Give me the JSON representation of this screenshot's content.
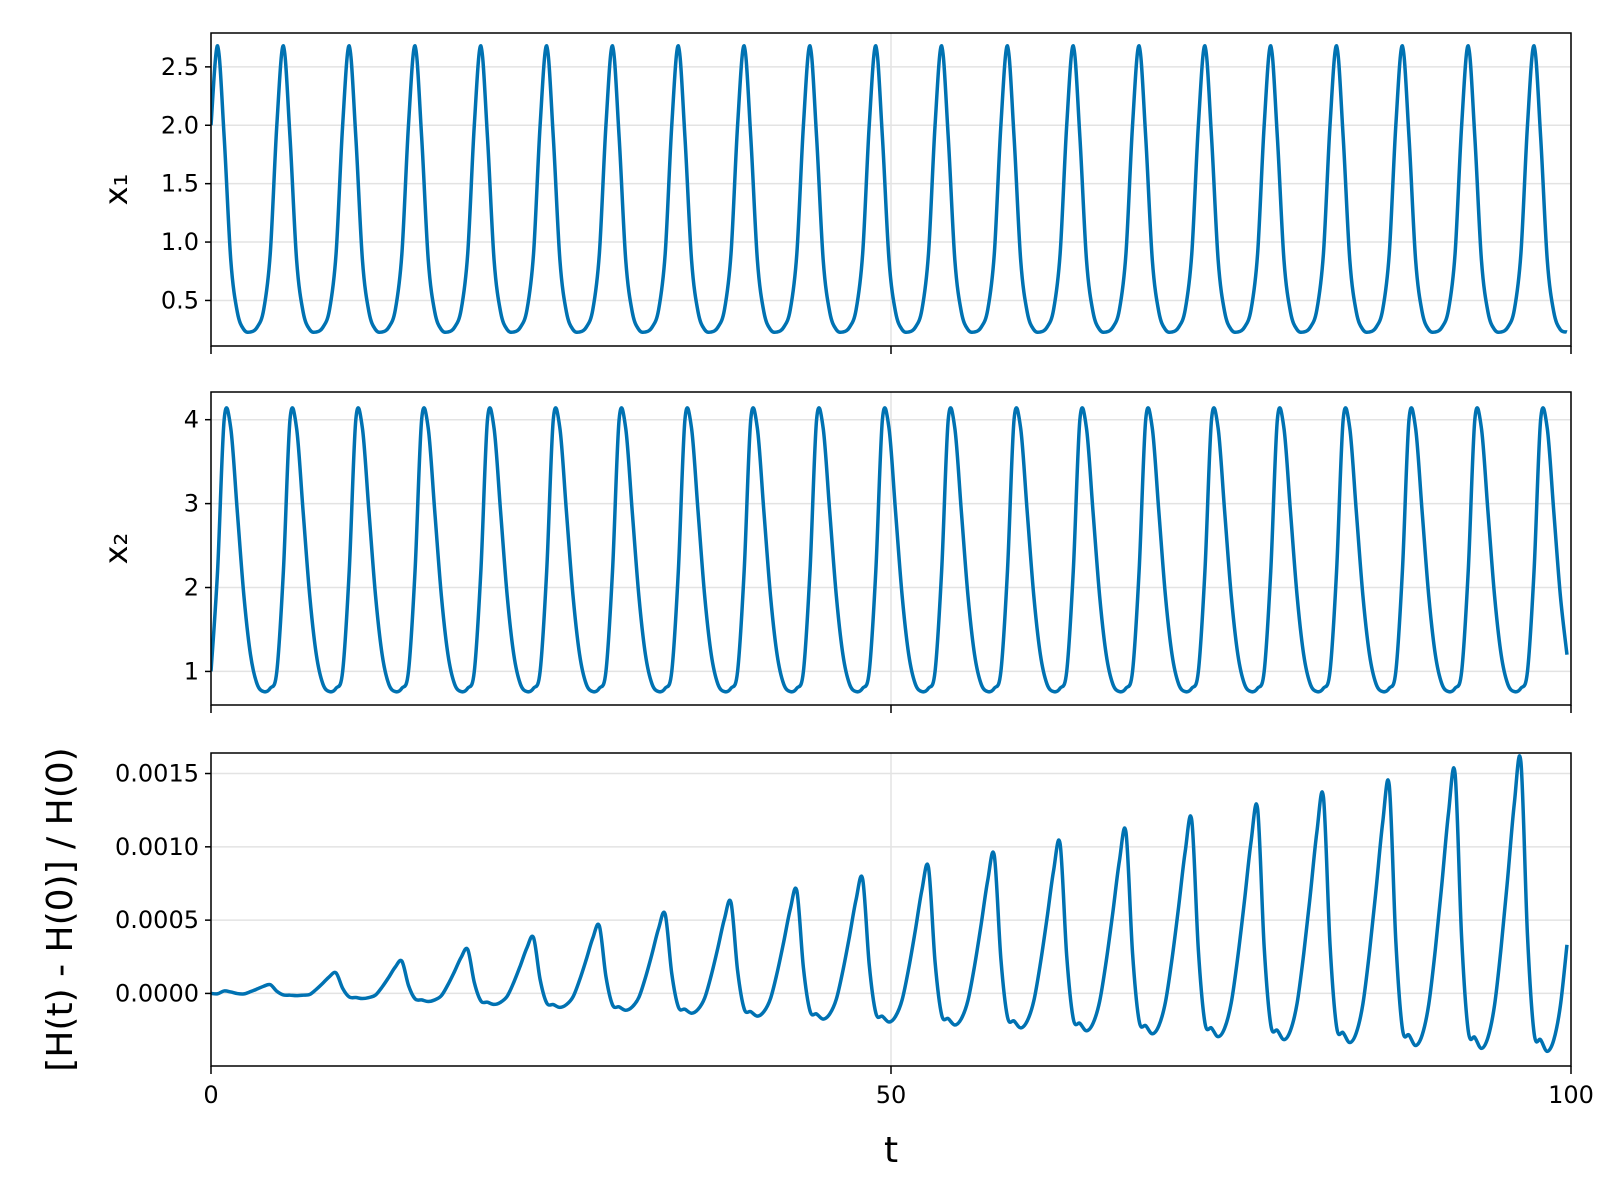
{
  "chart_data": {
    "type": "line",
    "xlabel": "t",
    "color": "#0072b2",
    "grid": true,
    "xlim": [
      0,
      100
    ],
    "xticks": [
      0,
      50,
      100
    ],
    "x": [
      0,
      0.484,
      0.968,
      1.452,
      1.936,
      2.42,
      2.904,
      3.388,
      3.872,
      4.356,
      4.84,
      5.324,
      5.808,
      6.292,
      6.776,
      7.26,
      7.744,
      8.228,
      8.712,
      9.196,
      9.68,
      10.164,
      10.648,
      11.132,
      11.616,
      12.1,
      12.584,
      13.068,
      13.552,
      14.036,
      14.52,
      15.004,
      15.488,
      15.972,
      16.456,
      16.94,
      17.424,
      17.908,
      18.392,
      18.876,
      19.36,
      19.844,
      20.328,
      20.812,
      21.296,
      21.78,
      22.264,
      22.748,
      23.232,
      23.716,
      24.2,
      24.684,
      25.168,
      25.652,
      26.136,
      26.62,
      27.104,
      27.588,
      28.072,
      28.556,
      29.04,
      29.524,
      30.008,
      30.492,
      30.976,
      31.46,
      31.944,
      32.428,
      32.912,
      33.396,
      33.88,
      34.364,
      34.848,
      35.332,
      35.816,
      36.3,
      36.784,
      37.268,
      37.752,
      38.236,
      38.72,
      39.204,
      39.688,
      40.172,
      40.656,
      41.14,
      41.624,
      42.108,
      42.592,
      43.076,
      43.56,
      44.044,
      44.528,
      45.012,
      45.496,
      45.98,
      46.464,
      46.948,
      47.432,
      47.916,
      48.4,
      48.884,
      49.368,
      49.852,
      50.336,
      50.82,
      51.304,
      51.788,
      52.272,
      52.756,
      53.24,
      53.724,
      54.208,
      54.692,
      55.176,
      55.66,
      56.144,
      56.628,
      57.112,
      57.596,
      58.08,
      58.564,
      59.048,
      59.532,
      60.016,
      60.5,
      60.984,
      61.468,
      61.952,
      62.436,
      62.92,
      63.404,
      63.888,
      64.372,
      64.856,
      65.34,
      65.824,
      66.308,
      66.792,
      67.276,
      67.76,
      68.244,
      68.728,
      69.212,
      69.696,
      70.18,
      70.664,
      71.148,
      71.632,
      72.116,
      72.6,
      73.084,
      73.568,
      74.052,
      74.536,
      75.02,
      75.504,
      75.988,
      76.472,
      76.956,
      77.44,
      77.924,
      78.408,
      78.892,
      79.376,
      79.86,
      80.344,
      80.828,
      81.312,
      81.796,
      82.28,
      82.764,
      83.248,
      83.732,
      84.216,
      84.7,
      85.184,
      85.668,
      86.152,
      86.636,
      87.12,
      87.604,
      88.088,
      88.572,
      89.056,
      89.54,
      90.024,
      90.508,
      90.992,
      91.476,
      91.96,
      92.444,
      92.928,
      93.412,
      93.896,
      94.38,
      94.864,
      95.348,
      95.832,
      96.316,
      96.8,
      97.284,
      97.768,
      98.252,
      98.736,
      99.22,
      99.704
    ],
    "panels": [
      {
        "ylabel": "x₁",
        "ylim": [
          0.11,
          2.79
        ],
        "yticks": [
          0.5,
          {
            "value": 1,
            "label": "1.0"
          },
          1.5,
          {
            "value": 2,
            "label": "2.0"
          },
          2.5
        ],
        "values": [
          2,
          2.68,
          1.9,
          0.85,
          0.4,
          0.25,
          0.23,
          0.27,
          0.42,
          0.9,
          2,
          2.68,
          1.9,
          0.85,
          0.4,
          0.25,
          0.23,
          0.27,
          0.42,
          0.9,
          2,
          2.68,
          1.9,
          0.85,
          0.4,
          0.25,
          0.23,
          0.27,
          0.42,
          0.9,
          2,
          2.68,
          1.9,
          0.85,
          0.4,
          0.25,
          0.23,
          0.27,
          0.42,
          0.9,
          2,
          2.68,
          1.9,
          0.85,
          0.4,
          0.25,
          0.23,
          0.27,
          0.42,
          0.9,
          2,
          2.68,
          1.9,
          0.85,
          0.4,
          0.25,
          0.23,
          0.27,
          0.42,
          0.9,
          2,
          2.68,
          1.9,
          0.85,
          0.4,
          0.25,
          0.23,
          0.27,
          0.42,
          0.9,
          2,
          2.68,
          1.9,
          0.85,
          0.4,
          0.25,
          0.23,
          0.27,
          0.42,
          0.9,
          2,
          2.68,
          1.9,
          0.85,
          0.4,
          0.25,
          0.23,
          0.27,
          0.42,
          0.9,
          2,
          2.68,
          1.9,
          0.85,
          0.4,
          0.25,
          0.23,
          0.27,
          0.42,
          0.9,
          2,
          2.68,
          1.9,
          0.85,
          0.4,
          0.25,
          0.23,
          0.27,
          0.42,
          0.9,
          2,
          2.68,
          1.9,
          0.85,
          0.4,
          0.25,
          0.23,
          0.27,
          0.42,
          0.9,
          2,
          2.68,
          1.9,
          0.85,
          0.4,
          0.25,
          0.23,
          0.27,
          0.42,
          0.9,
          2,
          2.68,
          1.9,
          0.85,
          0.4,
          0.25,
          0.23,
          0.27,
          0.42,
          0.9,
          2,
          2.68,
          1.9,
          0.85,
          0.4,
          0.25,
          0.23,
          0.27,
          0.42,
          0.9,
          2,
          2.68,
          1.9,
          0.85,
          0.4,
          0.25,
          0.23,
          0.27,
          0.42,
          0.9,
          2,
          2.68,
          1.9,
          0.85,
          0.4,
          0.25,
          0.23,
          0.27,
          0.42,
          0.9,
          2,
          2.68,
          1.9,
          0.85,
          0.4,
          0.25,
          0.23,
          0.27,
          0.42,
          0.9,
          2,
          2.68,
          1.9,
          0.85,
          0.4,
          0.25,
          0.23,
          0.27,
          0.42,
          0.9,
          2,
          2.68,
          1.9,
          0.85,
          0.4,
          0.25,
          0.23,
          0.27,
          0.42,
          0.9,
          2,
          2.68,
          1.9,
          0.85,
          0.4,
          0.25,
          0.23
        ]
      },
      {
        "ylabel": "x₂",
        "ylim": [
          0.6,
          4.33
        ],
        "yticks": [
          1,
          2,
          3,
          4
        ],
        "values": [
          1,
          2.2,
          4,
          3.9,
          2.9,
          1.9,
          1.2,
          0.85,
          0.76,
          0.8,
          1,
          2.2,
          4,
          3.9,
          2.9,
          1.9,
          1.2,
          0.85,
          0.76,
          0.8,
          1,
          2.2,
          4,
          3.9,
          2.9,
          1.9,
          1.2,
          0.85,
          0.76,
          0.8,
          1,
          2.2,
          4,
          3.9,
          2.9,
          1.9,
          1.2,
          0.85,
          0.76,
          0.8,
          1,
          2.2,
          4,
          3.9,
          2.9,
          1.9,
          1.2,
          0.85,
          0.76,
          0.8,
          1,
          2.2,
          4,
          3.9,
          2.9,
          1.9,
          1.2,
          0.85,
          0.76,
          0.8,
          1,
          2.2,
          4,
          3.9,
          2.9,
          1.9,
          1.2,
          0.85,
          0.76,
          0.8,
          1,
          2.2,
          4,
          3.9,
          2.9,
          1.9,
          1.2,
          0.85,
          0.76,
          0.8,
          1,
          2.2,
          4,
          3.9,
          2.9,
          1.9,
          1.2,
          0.85,
          0.76,
          0.8,
          1,
          2.2,
          4,
          3.9,
          2.9,
          1.9,
          1.2,
          0.85,
          0.76,
          0.8,
          1,
          2.2,
          4,
          3.9,
          2.9,
          1.9,
          1.2,
          0.85,
          0.76,
          0.8,
          1,
          2.2,
          4,
          3.9,
          2.9,
          1.9,
          1.2,
          0.85,
          0.76,
          0.8,
          1,
          2.2,
          4,
          3.9,
          2.9,
          1.9,
          1.2,
          0.85,
          0.76,
          0.8,
          1,
          2.2,
          4,
          3.9,
          2.9,
          1.9,
          1.2,
          0.85,
          0.76,
          0.8,
          1,
          2.2,
          4,
          3.9,
          2.9,
          1.9,
          1.2,
          0.85,
          0.76,
          0.8,
          1,
          2.2,
          4,
          3.9,
          2.9,
          1.9,
          1.2,
          0.85,
          0.76,
          0.8,
          1,
          2.2,
          4,
          3.9,
          2.9,
          1.9,
          1.2,
          0.85,
          0.76,
          0.8,
          1,
          2.2,
          4,
          3.9,
          2.9,
          1.9,
          1.2,
          0.85,
          0.76,
          0.8,
          1,
          2.2,
          4,
          3.9,
          2.9,
          1.9,
          1.2,
          0.85,
          0.76,
          0.8,
          1,
          2.2,
          4,
          3.9,
          2.9,
          1.9,
          1.2,
          0.85,
          0.76,
          0.8,
          1,
          2.2,
          4,
          3.9,
          2.9,
          1.9,
          1.2
        ]
      },
      {
        "ylabel": "[H(t) - H(0)] / H(0)",
        "ylim": [
          -0.000495,
          0.00164
        ],
        "yticks": [
          {
            "value": 0,
            "label": "0.0000"
          },
          0.0005,
          {
            "value": 0.001,
            "label": "0.0010"
          },
          0.0015
        ],
        "values": [
          0,
          -2e-06,
          1.7e-05,
          1e-05,
          -1e-06,
          -3e-06,
          1.2e-05,
          3e-05,
          4.9e-05,
          6e-05,
          1.5e-05,
          -1e-05,
          -1.2e-05,
          -1.5e-05,
          -1.2e-05,
          -7e-06,
          2.8e-05,
          7e-05,
          0.000115,
          0.00014,
          3.5e-05,
          -2.4e-05,
          -2.8e-05,
          -3.5e-05,
          -2.8e-05,
          -1.1e-05,
          4.4e-05,
          0.00011,
          0.00018,
          0.00022,
          5.5e-05,
          -3.7e-05,
          -4.4e-05,
          -5.5e-05,
          -4.4e-05,
          -1.5e-05,
          6e-05,
          0.00015,
          0.000246,
          0.0003,
          7.5e-05,
          -5.1e-05,
          -6e-05,
          -7.5e-05,
          -6e-05,
          -1.9e-05,
          7.6e-05,
          0.00019,
          0.000312,
          0.00038,
          9.5e-05,
          -6.5e-05,
          -7.6e-05,
          -9.5e-05,
          -7.6e-05,
          -2.3e-05,
          9.2e-05,
          0.00023,
          0.000377,
          0.00046,
          0.000115,
          -7.8e-05,
          -9.2e-05,
          -0.000115,
          -9.2e-05,
          -2.7e-05,
          0.000108,
          0.00027,
          0.000443,
          0.00054,
          0.000135,
          -9.2e-05,
          -0.000108,
          -0.000135,
          -0.000108,
          -3.1e-05,
          0.000124,
          0.00031,
          0.000508,
          0.00062,
          0.000155,
          -0.000105,
          -0.000124,
          -0.000155,
          -0.000124,
          -3.5e-05,
          0.00014,
          0.00035,
          0.000574,
          0.0007,
          0.000175,
          -0.000119,
          -0.00014,
          -0.000175,
          -0.00014,
          -3.9e-05,
          0.000156,
          0.00039,
          0.00064,
          0.00078,
          0.000195,
          -0.000133,
          -0.000156,
          -0.000195,
          -0.000156,
          -4.3e-05,
          0.000172,
          0.00043,
          0.000705,
          0.00086,
          0.000215,
          -0.000146,
          -0.000172,
          -0.000215,
          -0.000172,
          -4.7e-05,
          0.000188,
          0.00047,
          0.000771,
          0.00094,
          0.000235,
          -0.00016,
          -0.000188,
          -0.000235,
          -0.000188,
          -5.1e-05,
          0.000204,
          0.00051,
          0.000836,
          0.00102,
          0.000255,
          -0.000173,
          -0.000204,
          -0.000255,
          -0.000204,
          -5.5e-05,
          0.00022,
          0.00055,
          0.000902,
          0.0011,
          0.000275,
          -0.000187,
          -0.00022,
          -0.000275,
          -0.00022,
          -5.9e-05,
          0.000236,
          0.00059,
          0.000968,
          0.00118,
          0.000295,
          -0.000201,
          -0.000236,
          -0.000295,
          -0.000236,
          -6.3e-05,
          0.000252,
          0.00063,
          0.001033,
          0.00126,
          0.000315,
          -0.000214,
          -0.000252,
          -0.000315,
          -0.000252,
          -6.7e-05,
          0.000268,
          0.00067,
          0.001099,
          0.00134,
          0.000335,
          -0.000228,
          -0.000268,
          -0.000335,
          -0.000268,
          -7.1e-05,
          0.000284,
          0.00071,
          0.001164,
          0.00142,
          0.000355,
          -0.000241,
          -0.000284,
          -0.000355,
          -0.000284,
          -7.5e-05,
          0.0003,
          0.00075,
          0.00123,
          0.0015,
          0.000375,
          -0.000255,
          -0.0003,
          -0.000375,
          -0.0003,
          -7.9e-05,
          0.000316,
          0.00079,
          0.001296,
          0.00158,
          0.000395,
          -0.000269,
          -0.000316,
          -0.000395,
          -0.000316,
          -8.3e-05,
          0.000332
        ]
      }
    ]
  }
}
